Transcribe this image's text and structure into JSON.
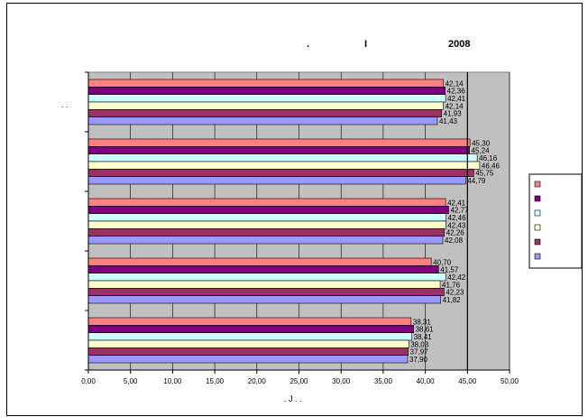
{
  "chart_data": {
    "type": "bar",
    "orientation": "horizontal",
    "title_parts": [
      ".",
      "I",
      "2008"
    ],
    "ylabel": ". .",
    "xlabel": ". J . .",
    "xlim": [
      0,
      50
    ],
    "x_tick_labels": [
      "0,00",
      "5,00",
      "10,00",
      "15,00",
      "20,00",
      "25,00",
      "30,00",
      "35,00",
      "40,00",
      "45,00",
      "50,00"
    ],
    "grid": true,
    "legend_position": "right",
    "categories": [
      "",
      "",
      "",
      "",
      ""
    ],
    "series": [
      {
        "color": "#FF8080",
        "values": [
          42.14,
          45.3,
          42.41,
          40.7,
          38.31
        ],
        "labels": [
          "42,14",
          "45,30",
          "42,41",
          "40,70",
          "38,31"
        ]
      },
      {
        "color": "#800080",
        "values": [
          42.36,
          45.24,
          42.77,
          41.57,
          38.61
        ],
        "labels": [
          "42,36",
          "45,24",
          "42,77",
          "41,57",
          "38,61"
        ]
      },
      {
        "color": "#CCFFFF",
        "values": [
          42.41,
          46.16,
          42.46,
          42.42,
          38.41
        ],
        "labels": [
          "42,41",
          "46,16",
          "42,46",
          "42,42",
          "38,41"
        ]
      },
      {
        "color": "#FFFFCC",
        "values": [
          42.14,
          46.46,
          42.43,
          41.76,
          38.03
        ],
        "labels": [
          "42,14",
          "46,46",
          "42,43",
          "41,76",
          "38,03"
        ]
      },
      {
        "color": "#993366",
        "values": [
          41.93,
          45.75,
          42.26,
          42.23,
          37.97
        ],
        "labels": [
          "41,93",
          "45,75",
          "42,26",
          "42,23",
          "37,97"
        ]
      },
      {
        "color": "#9999FF",
        "values": [
          41.43,
          44.79,
          42.08,
          41.82,
          37.9
        ],
        "labels": [
          "41,43",
          "44,79",
          "42,08",
          "41,82",
          "37,90"
        ]
      }
    ],
    "reference_line": 45,
    "colors": {
      "plot_background": "#C0C0C0",
      "gridline": "#000000"
    }
  }
}
